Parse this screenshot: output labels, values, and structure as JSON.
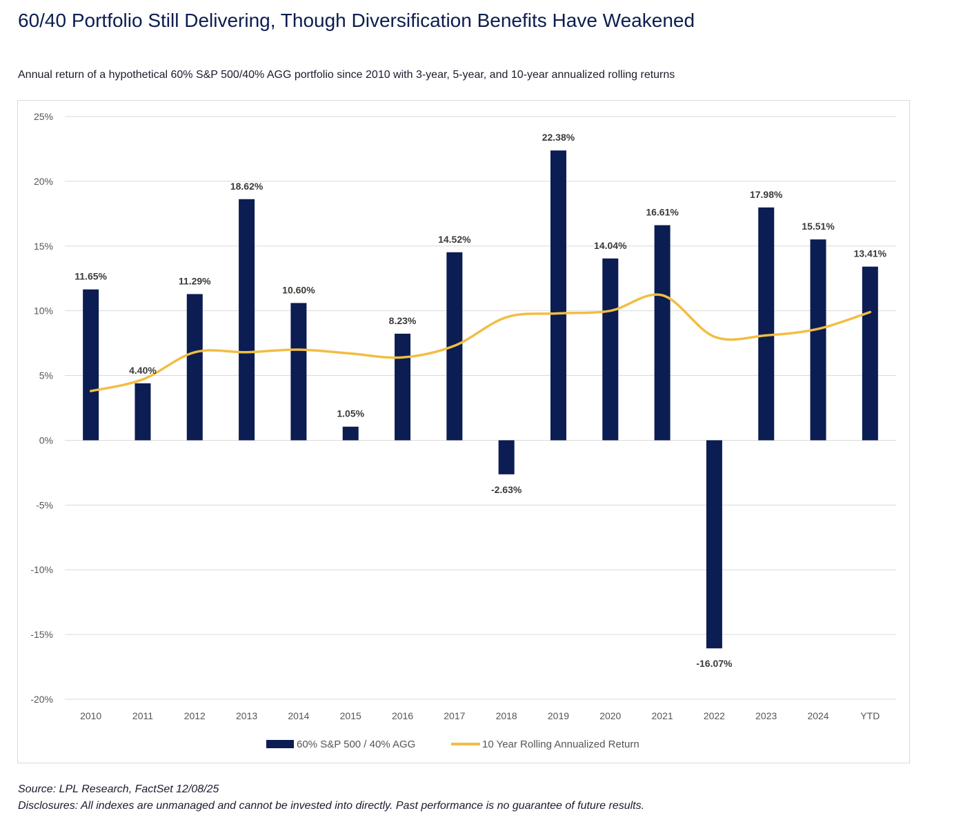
{
  "header": {
    "title": "60/40 Portfolio Still Delivering, Though Diversification Benefits Have Weakened",
    "subtitle": "Annual return of a hypothetical 60% S&P 500/40% AGG portfolio since 2010 with 3-year, 5-year, and 10-year annualized rolling returns"
  },
  "footer": {
    "source": "Source: LPL Research, FactSet 12/08/25",
    "disclosures": "Disclosures: All indexes are unmanaged and cannot be invested into directly. Past performance is no guarantee of future results."
  },
  "chart_data": {
    "type": "bar",
    "categories": [
      "2010",
      "2011",
      "2012",
      "2013",
      "2014",
      "2015",
      "2016",
      "2017",
      "2018",
      "2019",
      "2020",
      "2021",
      "2022",
      "2023",
      "2024",
      "YTD"
    ],
    "series": [
      {
        "name": "60% S&P 500 / 40% AGG",
        "type": "bar",
        "color": "#0b1d52",
        "values": [
          11.65,
          4.4,
          11.29,
          18.62,
          10.6,
          1.05,
          8.23,
          14.52,
          -2.63,
          22.38,
          14.04,
          16.61,
          -16.07,
          17.98,
          15.51,
          13.41
        ],
        "labels": [
          "11.65%",
          "4.40%",
          "11.29%",
          "18.62%",
          "10.60%",
          "1.05%",
          "8.23%",
          "14.52%",
          "-2.63%",
          "22.38%",
          "14.04%",
          "16.61%",
          "-16.07%",
          "17.98%",
          "15.51%",
          "13.41%"
        ]
      },
      {
        "name": "10 Year Rolling Annualized Return",
        "type": "line",
        "color": "#f2bd42",
        "values": [
          3.8,
          4.7,
          6.8,
          6.8,
          7.0,
          6.7,
          6.4,
          7.3,
          9.5,
          9.8,
          10.0,
          11.2,
          8.0,
          8.1,
          8.6,
          9.9
        ]
      }
    ],
    "y_ticks": [
      25,
      20,
      15,
      10,
      5,
      0,
      -5,
      -10,
      -15,
      -20
    ],
    "y_tick_labels": [
      "25%",
      "20%",
      "15%",
      "10%",
      "5%",
      "0%",
      "-5%",
      "-10%",
      "-15%",
      "-20%"
    ],
    "ylim": [
      -20,
      25
    ],
    "grid": true,
    "legend_position": "bottom-center"
  }
}
